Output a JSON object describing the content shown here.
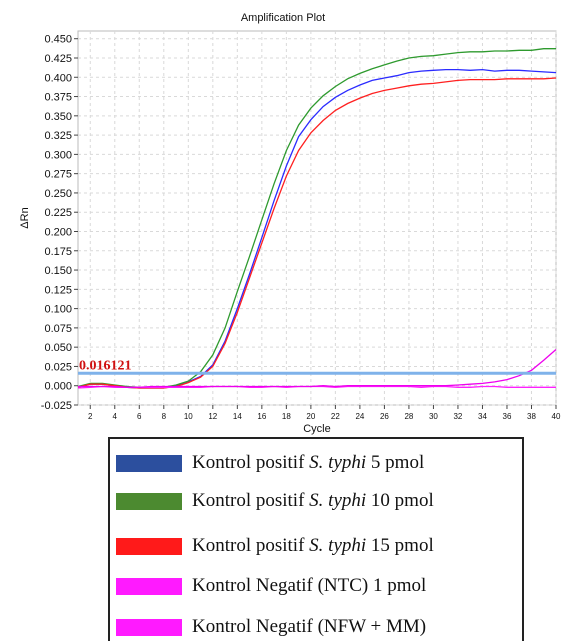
{
  "chart_data": {
    "type": "line",
    "title": "Amplification Plot",
    "xlabel": "Cycle",
    "ylabel": "ΔRn",
    "xlim": [
      1,
      40
    ],
    "ylim": [
      -0.025,
      0.46
    ],
    "xticks": [
      2,
      4,
      6,
      8,
      10,
      12,
      14,
      16,
      18,
      20,
      22,
      24,
      26,
      28,
      30,
      32,
      34,
      36,
      38,
      40
    ],
    "yticks": [
      "-0.025",
      "0.000",
      "0.025",
      "0.050",
      "0.075",
      "0.100",
      "0.125",
      "0.150",
      "0.175",
      "0.200",
      "0.225",
      "0.250",
      "0.275",
      "0.300",
      "0.325",
      "0.350",
      "0.375",
      "0.400",
      "0.425",
      "0.450"
    ],
    "grid": true,
    "threshold": {
      "value": 0.016121,
      "label": "0.016121",
      "color": "#7fb2ea"
    },
    "x": [
      1,
      2,
      3,
      4,
      5,
      6,
      7,
      8,
      9,
      10,
      11,
      12,
      13,
      14,
      15,
      16,
      17,
      18,
      19,
      20,
      21,
      22,
      23,
      24,
      25,
      26,
      27,
      28,
      29,
      30,
      31,
      32,
      33,
      34,
      35,
      36,
      37,
      38,
      39,
      40
    ],
    "series": [
      {
        "name": "Kontrol positif S. typhi 5 pmol",
        "color": "#2b2bff",
        "values": [
          -0.002,
          0.002,
          0.002,
          0.0,
          -0.002,
          -0.003,
          -0.003,
          -0.003,
          0.0,
          0.005,
          0.012,
          0.027,
          0.058,
          0.1,
          0.145,
          0.192,
          0.24,
          0.285,
          0.323,
          0.345,
          0.362,
          0.374,
          0.383,
          0.39,
          0.396,
          0.399,
          0.402,
          0.406,
          0.408,
          0.409,
          0.41,
          0.41,
          0.409,
          0.41,
          0.408,
          0.409,
          0.409,
          0.408,
          0.407,
          0.406
        ]
      },
      {
        "name": "Kontrol positif S. typhi 10 pmol",
        "color": "#2e9a2e",
        "values": [
          -0.001,
          0.003,
          0.003,
          0.001,
          -0.001,
          -0.002,
          -0.002,
          -0.002,
          0.001,
          0.006,
          0.018,
          0.04,
          0.075,
          0.122,
          0.168,
          0.215,
          0.262,
          0.305,
          0.338,
          0.36,
          0.376,
          0.388,
          0.398,
          0.405,
          0.411,
          0.416,
          0.421,
          0.425,
          0.427,
          0.428,
          0.43,
          0.432,
          0.433,
          0.433,
          0.434,
          0.434,
          0.435,
          0.435,
          0.437,
          0.437
        ]
      },
      {
        "name": "Kontrol positif S. typhi 15 pmol",
        "color": "#ff2020",
        "values": [
          -0.002,
          0.002,
          0.002,
          0.0,
          -0.002,
          -0.003,
          -0.003,
          -0.003,
          -0.001,
          0.004,
          0.011,
          0.025,
          0.055,
          0.095,
          0.14,
          0.185,
          0.23,
          0.272,
          0.305,
          0.328,
          0.344,
          0.357,
          0.366,
          0.373,
          0.379,
          0.383,
          0.386,
          0.389,
          0.391,
          0.392,
          0.394,
          0.396,
          0.397,
          0.397,
          0.397,
          0.398,
          0.398,
          0.398,
          0.398,
          0.399
        ]
      },
      {
        "name": "Kontrol Negatif (NTC) 1 pmol",
        "color": "#ff20ff",
        "values": [
          -0.003,
          -0.002,
          -0.001,
          -0.002,
          -0.002,
          -0.002,
          -0.002,
          -0.002,
          -0.002,
          -0.002,
          -0.002,
          -0.001,
          -0.001,
          -0.001,
          -0.002,
          -0.002,
          -0.001,
          -0.002,
          -0.001,
          -0.001,
          -0.001,
          -0.002,
          -0.001,
          -0.001,
          -0.001,
          -0.001,
          -0.001,
          -0.001,
          -0.002,
          -0.001,
          -0.001,
          -0.002,
          -0.002,
          -0.001,
          -0.001,
          -0.002,
          -0.002,
          -0.002,
          -0.002,
          -0.002
        ]
      },
      {
        "name": "Kontrol Negatif (NFW + MM)",
        "color": "#ee00ee",
        "values": [
          -0.001,
          -0.001,
          -0.001,
          -0.001,
          -0.002,
          -0.002,
          -0.001,
          -0.001,
          -0.001,
          -0.001,
          -0.001,
          -0.001,
          -0.001,
          -0.001,
          -0.001,
          -0.001,
          -0.001,
          -0.001,
          -0.001,
          -0.001,
          0.0,
          -0.001,
          0.0,
          0.0,
          0.0,
          0.0,
          0.0,
          0.0,
          0.0,
          0.0,
          0.0,
          0.001,
          0.002,
          0.003,
          0.005,
          0.008,
          0.013,
          0.02,
          0.033,
          0.047
        ]
      }
    ]
  },
  "legend": {
    "items": [
      {
        "prefix": "Kontrol positif ",
        "species": "S. typhi",
        "suffix": " 5 pmol",
        "color": "#2c4f9e"
      },
      {
        "prefix": "Kontrol positif ",
        "species": "S. typhi",
        "suffix": " 10 pmol",
        "color": "#4c8a30"
      },
      {
        "prefix": "Kontrol positif ",
        "species": "S. typhi",
        "suffix": " 15 pmol",
        "color": "#ff1a1a"
      },
      {
        "prefix": "Kontrol Negatif (NTC) 1 pmol",
        "species": "",
        "suffix": "",
        "color": "#ff1aff"
      },
      {
        "prefix": "Kontrol Negatif (NFW + MM)",
        "species": "",
        "suffix": "",
        "color": "#ff1aff"
      }
    ]
  }
}
